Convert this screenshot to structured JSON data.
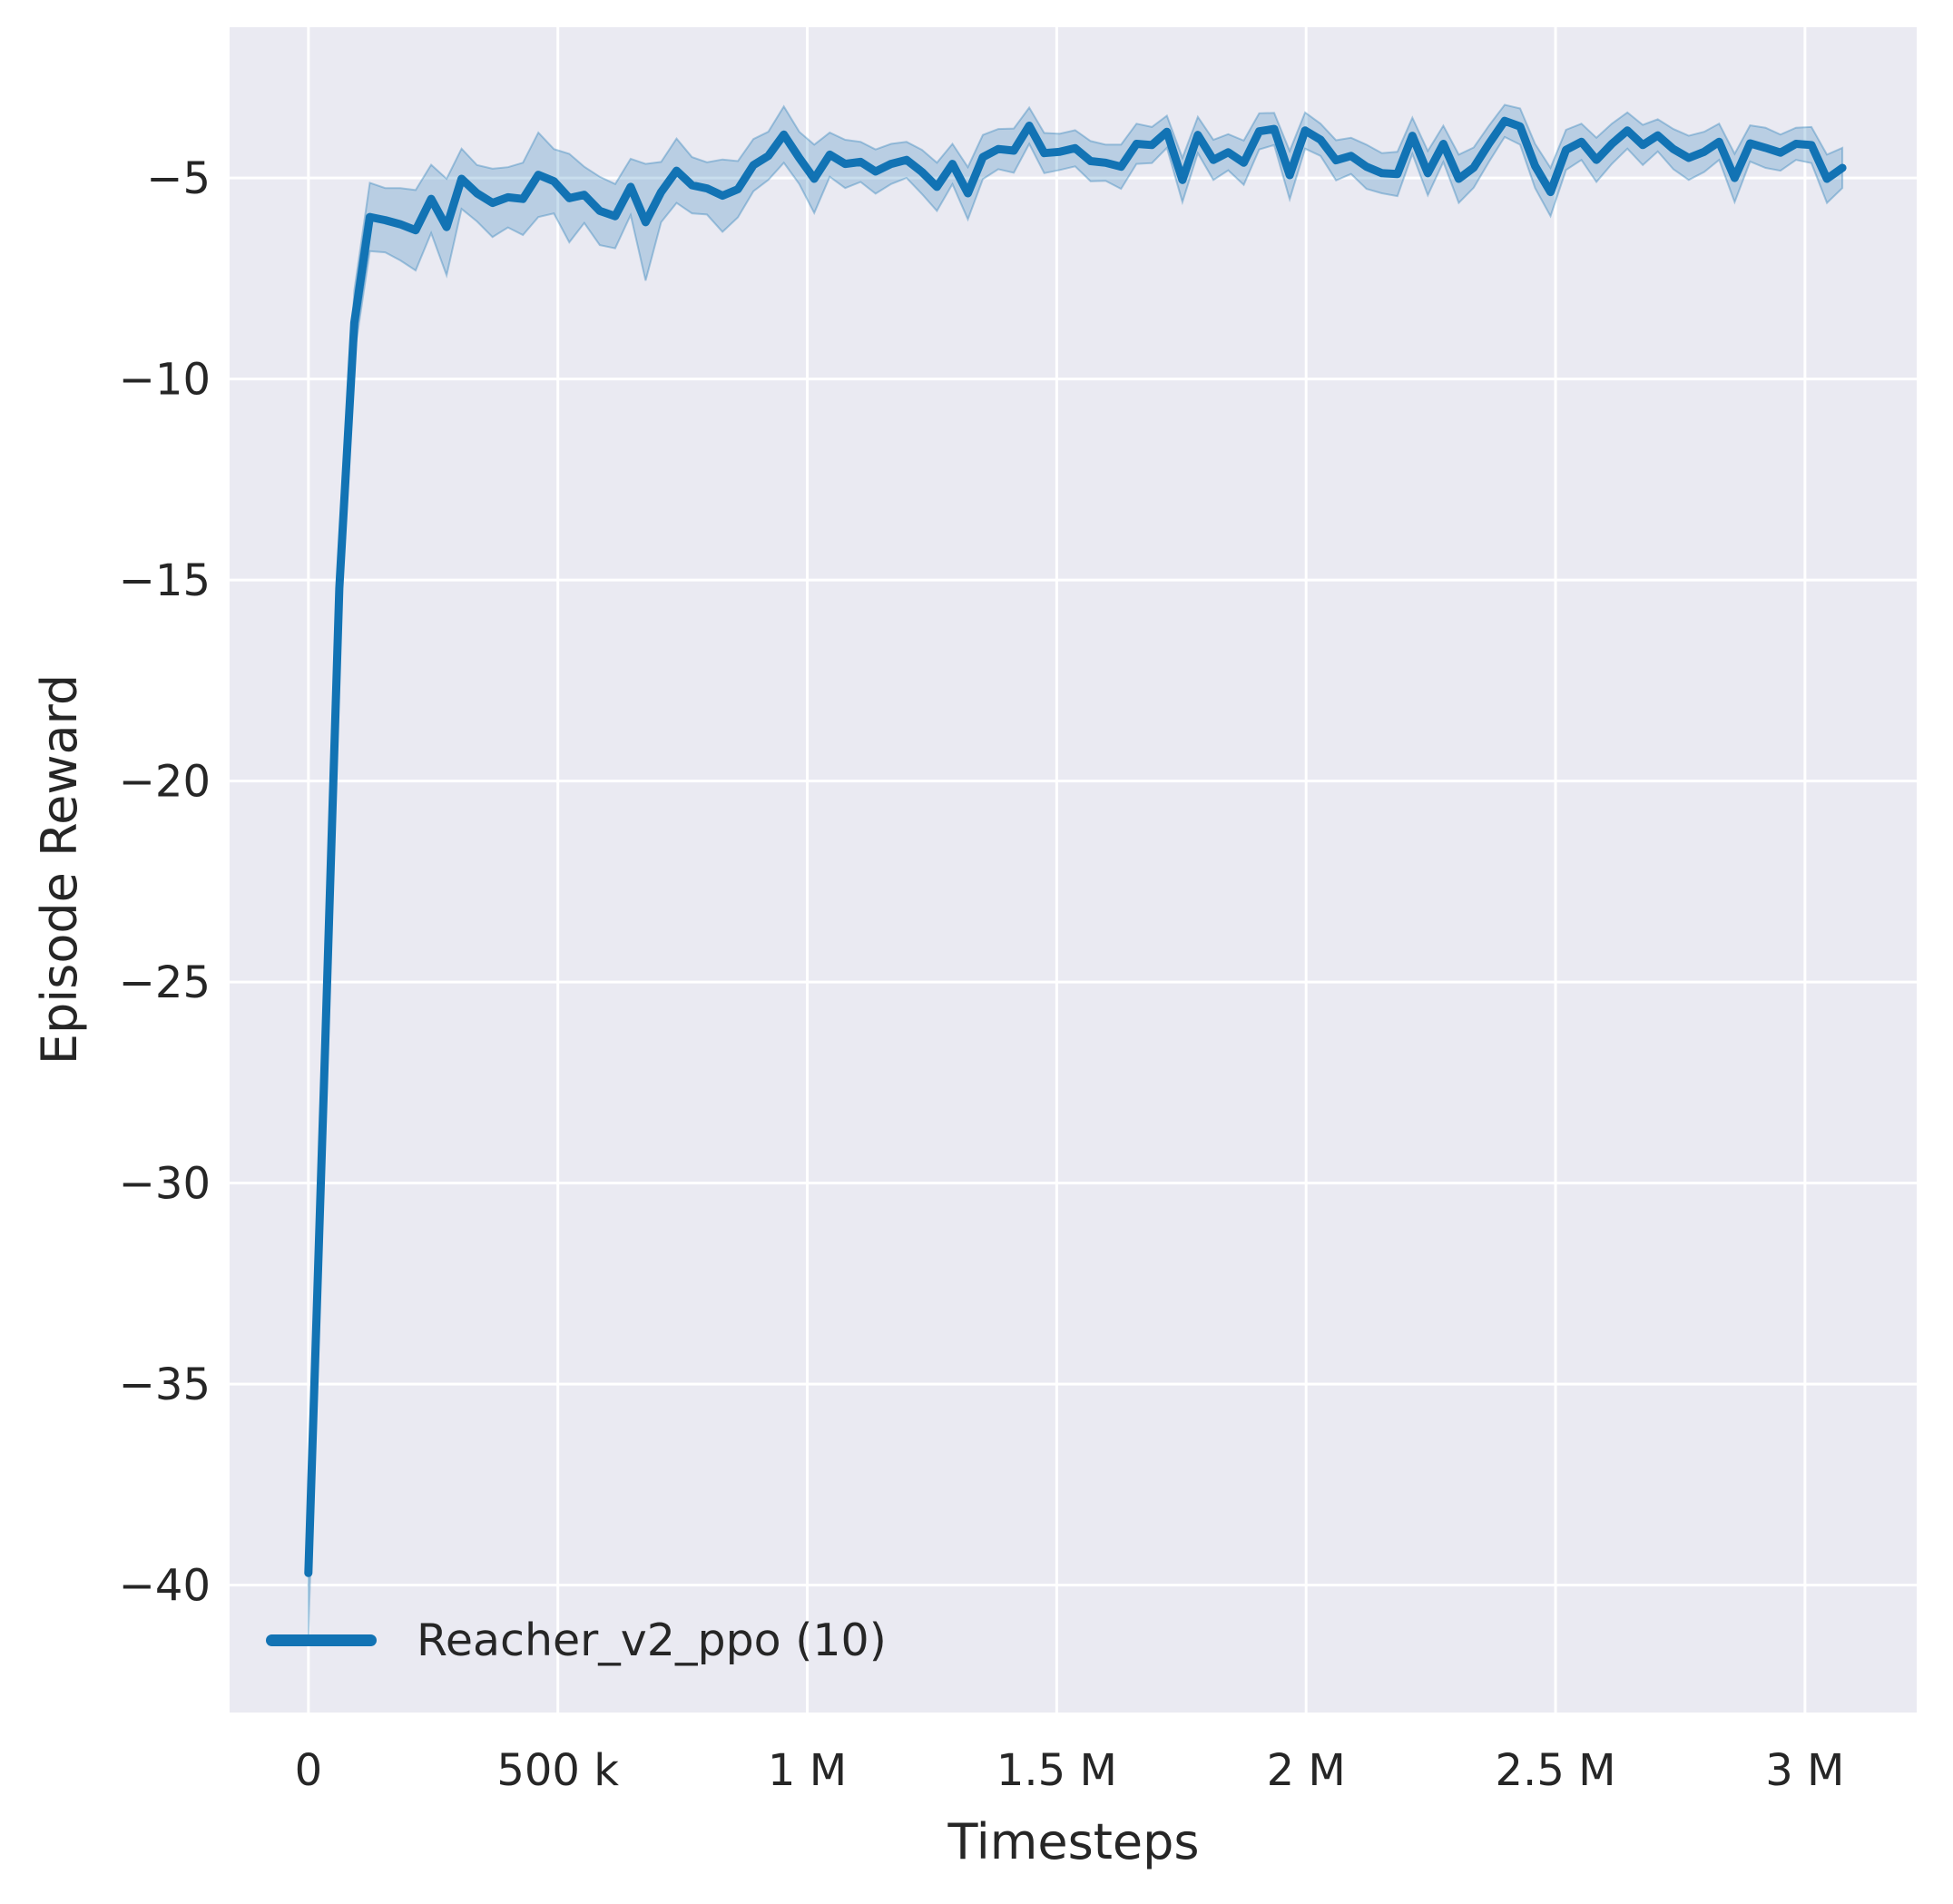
{
  "chart_data": {
    "type": "line",
    "title": "",
    "xlabel": "Timesteps",
    "ylabel": "Episode Reward",
    "grid": true,
    "legend_position": "lower left",
    "axes_background": "#eaeaf2",
    "grid_color": "#ffffff",
    "tick_color": "#262626",
    "xlim": [
      -158000,
      3224000
    ],
    "ylim": [
      -43.17,
      -1.25
    ],
    "x_ticks": [
      {
        "value": 0,
        "label": "0"
      },
      {
        "value": 500000,
        "label": "500 k"
      },
      {
        "value": 1000000,
        "label": "1 M"
      },
      {
        "value": 1500000,
        "label": "1.5 M"
      },
      {
        "value": 2000000,
        "label": "2 M"
      },
      {
        "value": 2500000,
        "label": "2.5 M"
      },
      {
        "value": 3000000,
        "label": "3 M"
      }
    ],
    "y_ticks": [
      {
        "value": -5,
        "label": "−5"
      },
      {
        "value": -10,
        "label": "−10"
      },
      {
        "value": -15,
        "label": "−15"
      },
      {
        "value": -20,
        "label": "−20"
      },
      {
        "value": -25,
        "label": "−25"
      },
      {
        "value": -30,
        "label": "−30"
      },
      {
        "value": -35,
        "label": "−35"
      },
      {
        "value": -40,
        "label": "−40"
      }
    ],
    "series": [
      {
        "name": "Reacher_v2_ppo (10)",
        "color": "#1273b4",
        "band_fill": "rgba(31,119,180,0.24)",
        "band_edge": "rgba(31,119,180,0.35)",
        "x": [
          0,
          31000,
          62000,
          92000,
          123000,
          154000,
          184000,
          215000,
          246000,
          277000,
          307000,
          338000,
          369000,
          400000,
          430000,
          461000,
          492000,
          523000,
          553000,
          584000,
          615000,
          646000,
          676000,
          707000,
          738000,
          769000,
          799000,
          830000,
          861000,
          892000,
          922000,
          953000,
          984000,
          1014000,
          1045000,
          1076000,
          1107000,
          1137000,
          1168000,
          1199000,
          1230000,
          1260000,
          1291000,
          1322000,
          1352000,
          1383000,
          1414000,
          1445000,
          1475000,
          1506000,
          1537000,
          1568000,
          1598000,
          1629000,
          1660000,
          1691000,
          1721000,
          1752000,
          1783000,
          1814000,
          1844000,
          1875000,
          1906000,
          1936000,
          1967000,
          1998000,
          2029000,
          2060000,
          2090000,
          2121000,
          2152000,
          2183000,
          2213000,
          2244000,
          2275000,
          2306000,
          2336000,
          2367000,
          2398000,
          2429000,
          2459000,
          2490000,
          2521000,
          2552000,
          2582000,
          2613000,
          2644000,
          2675000,
          2705000,
          2736000,
          2767000,
          2798000,
          2828000,
          2859000,
          2890000,
          2921000,
          2951000,
          2982000,
          3013000,
          3044000,
          3075000
        ],
        "y": [
          -39.7,
          -27.6,
          -15.2,
          -8.6,
          -5.97,
          -6.05,
          -6.15,
          -6.3,
          -5.52,
          -6.22,
          -5.02,
          -5.38,
          -5.62,
          -5.48,
          -5.52,
          -4.92,
          -5.08,
          -5.5,
          -5.42,
          -5.82,
          -5.95,
          -5.22,
          -6.1,
          -5.35,
          -4.82,
          -5.18,
          -5.26,
          -5.44,
          -5.28,
          -4.68,
          -4.45,
          -3.92,
          -4.5,
          -5.02,
          -4.42,
          -4.65,
          -4.6,
          -4.84,
          -4.65,
          -4.55,
          -4.85,
          -5.22,
          -4.65,
          -5.38,
          -4.48,
          -4.28,
          -4.32,
          -3.7,
          -4.38,
          -4.35,
          -4.26,
          -4.58,
          -4.62,
          -4.72,
          -4.15,
          -4.18,
          -3.85,
          -5.05,
          -3.93,
          -4.55,
          -4.36,
          -4.62,
          -3.84,
          -3.78,
          -4.93,
          -3.82,
          -4.05,
          -4.56,
          -4.45,
          -4.72,
          -4.88,
          -4.9,
          -3.95,
          -4.88,
          -4.15,
          -5.02,
          -4.74,
          -4.14,
          -3.58,
          -3.72,
          -4.7,
          -5.35,
          -4.3,
          -4.1,
          -4.55,
          -4.15,
          -3.82,
          -4.18,
          -3.94,
          -4.28,
          -4.5,
          -4.35,
          -4.1,
          -5.0,
          -4.14,
          -4.25,
          -4.37,
          -4.15,
          -4.18,
          -5.02,
          -4.75
        ],
        "band_halfwidth": [
          1.55,
          1.0,
          0.8,
          0.8,
          0.85,
          0.8,
          0.9,
          1.0,
          0.85,
          1.2,
          0.75,
          0.7,
          0.85,
          0.75,
          0.9,
          1.05,
          0.8,
          1.1,
          0.7,
          0.85,
          0.8,
          0.7,
          1.45,
          0.75,
          0.8,
          0.7,
          0.65,
          0.9,
          0.7,
          0.65,
          0.6,
          0.7,
          0.65,
          0.85,
          0.55,
          0.6,
          0.5,
          0.55,
          0.5,
          0.45,
          0.55,
          0.6,
          0.5,
          0.65,
          0.55,
          0.5,
          0.55,
          0.45,
          0.5,
          0.45,
          0.45,
          0.5,
          0.45,
          0.55,
          0.5,
          0.45,
          0.4,
          0.55,
          0.45,
          0.5,
          0.45,
          0.55,
          0.45,
          0.4,
          0.6,
          0.45,
          0.4,
          0.5,
          0.45,
          0.55,
          0.5,
          0.55,
          0.45,
          0.55,
          0.45,
          0.6,
          0.5,
          0.45,
          0.4,
          0.45,
          0.55,
          0.6,
          0.5,
          0.45,
          0.55,
          0.5,
          0.45,
          0.5,
          0.4,
          0.5,
          0.55,
          0.5,
          0.45,
          0.6,
          0.45,
          0.5,
          0.45,
          0.4,
          0.45,
          0.6,
          0.5
        ]
      }
    ]
  }
}
